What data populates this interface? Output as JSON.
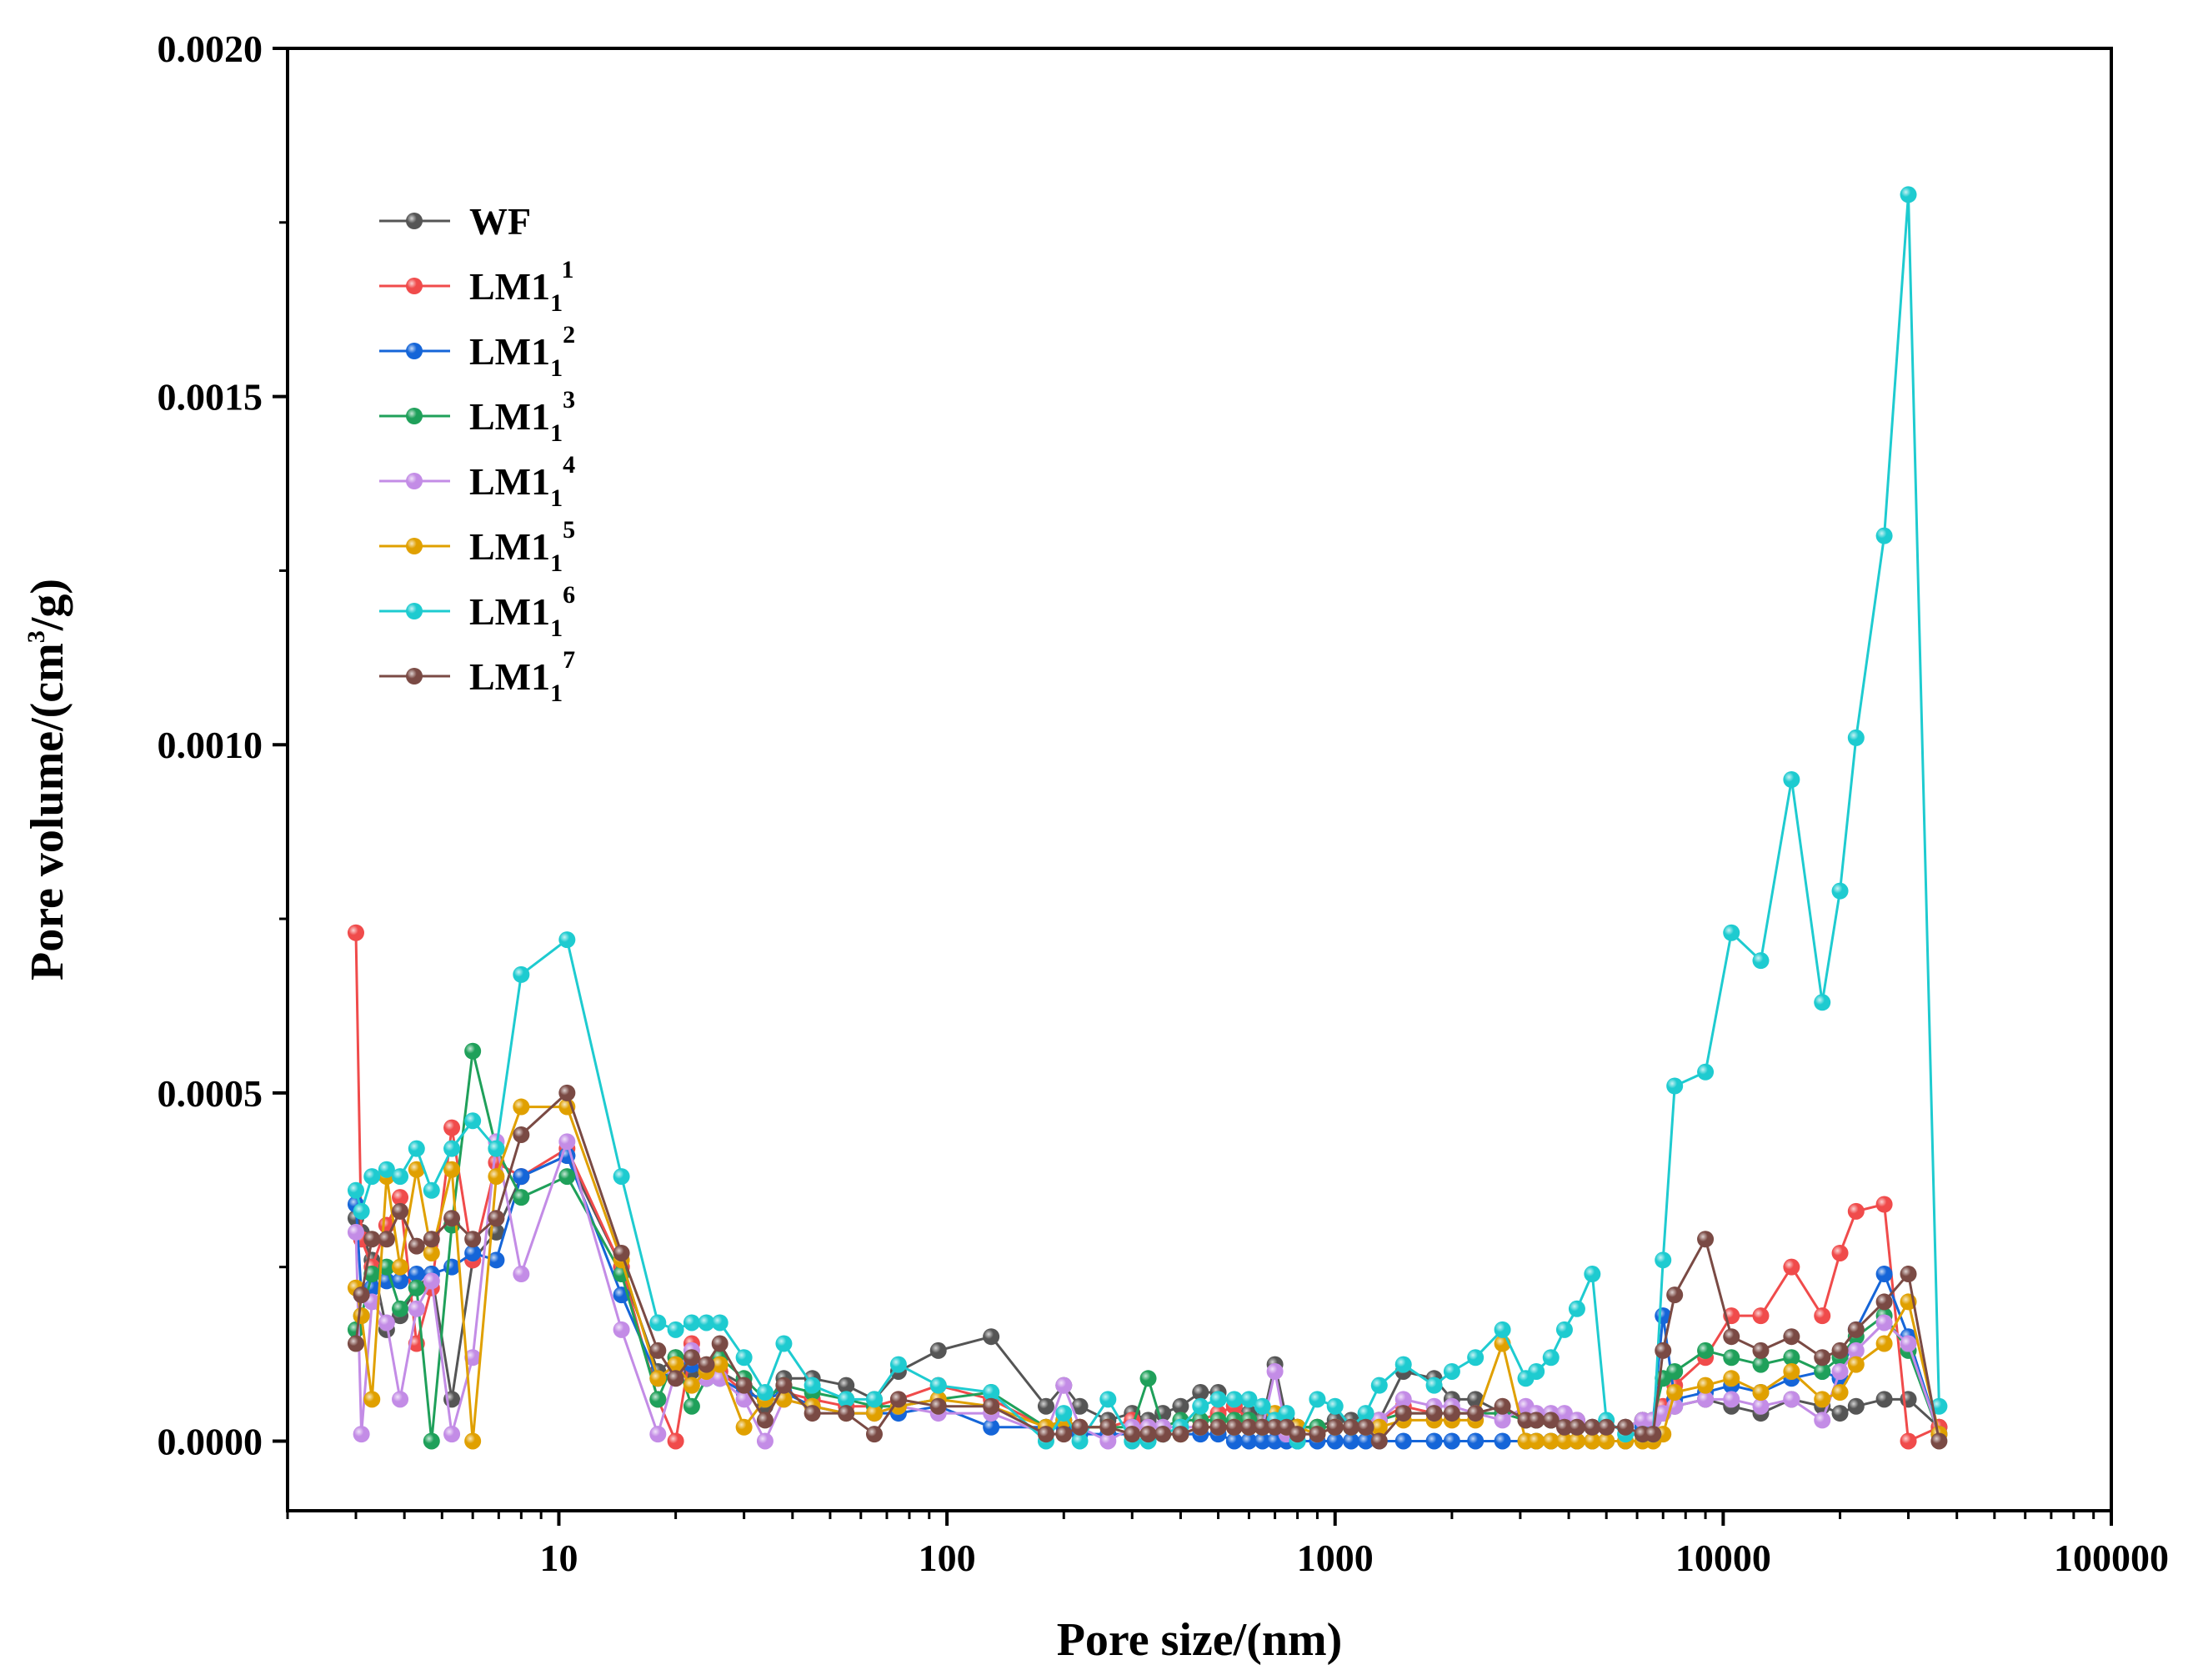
{
  "chart_data": {
    "type": "line",
    "title": "",
    "xlabel": "Pore size/(nm)",
    "ylabel_parts": [
      "Pore volume/(cm",
      "3",
      "/g)"
    ],
    "xscale": "log",
    "xlim": [
      2,
      100000
    ],
    "ylim": [
      -0.0001,
      0.002
    ],
    "xticks": [
      10,
      100,
      1000,
      10000,
      100000
    ],
    "xtick_labels": [
      "10",
      "100",
      "1000",
      "10000",
      "100000"
    ],
    "yticks": [
      0,
      0.0005,
      0.001,
      0.0015,
      0.002
    ],
    "ytick_labels": [
      "0.0000",
      "0.0005",
      "0.0010",
      "0.0015",
      "0.0020"
    ],
    "legend_position": "top-left",
    "x": [
      3.0,
      3.1,
      3.3,
      3.6,
      3.9,
      4.3,
      4.7,
      5.3,
      6.0,
      6.9,
      8.0,
      10.5,
      14.5,
      18,
      20,
      22,
      24,
      26,
      30,
      34,
      38,
      45,
      55,
      65,
      75,
      95,
      130,
      180,
      200,
      220,
      260,
      300,
      330,
      360,
      400,
      450,
      500,
      550,
      600,
      650,
      700,
      750,
      800,
      900,
      1000,
      1100,
      1200,
      1300,
      1500,
      1800,
      2000,
      2300,
      2700,
      3100,
      3300,
      3600,
      3900,
      4200,
      4600,
      5000,
      5600,
      6200,
      6600,
      7000,
      7500,
      9000,
      10500,
      12500,
      15000,
      18000,
      20000,
      22000,
      26000,
      30000,
      36000
    ],
    "series": [
      {
        "name": "WF",
        "label_base": "WF",
        "label_sup": "",
        "color": "#555555",
        "values": [
          0.00032,
          0.0003,
          0.00026,
          0.00016,
          0.00018,
          0.00022,
          0.00024,
          6e-05,
          0.00026,
          0.0003,
          0.00038,
          0.00041,
          0.00025,
          0.0001,
          0.00012,
          0.0001,
          9e-05,
          0.0001,
          8e-05,
          5e-05,
          9e-05,
          9e-05,
          8e-05,
          6e-05,
          0.0001,
          0.00013,
          0.00015,
          5e-05,
          8e-05,
          5e-05,
          3e-05,
          4e-05,
          3e-05,
          4e-05,
          5e-05,
          7e-05,
          7e-05,
          5e-05,
          4e-05,
          3e-05,
          0.00011,
          3e-05,
          2e-05,
          2e-05,
          3e-05,
          3e-05,
          3e-05,
          3e-05,
          0.0001,
          9e-05,
          6e-05,
          6e-05,
          4e-05,
          4e-05,
          3e-05,
          3e-05,
          3e-05,
          3e-05,
          2e-05,
          2e-05,
          2e-05,
          3e-05,
          3e-05,
          4e-05,
          5e-05,
          6e-05,
          5e-05,
          4e-05,
          6e-05,
          5e-05,
          4e-05,
          5e-05,
          6e-05,
          6e-05,
          2e-05
        ]
      },
      {
        "name": "LM1_1^1",
        "label_base": "LM1",
        "label_sub": "1",
        "label_sup": "1",
        "color": "#f04b4b",
        "values": [
          0.00073,
          0.00029,
          0.00025,
          0.00031,
          0.00035,
          0.00014,
          0.00022,
          0.00045,
          0.00026,
          0.0004,
          0.00038,
          0.00042,
          0.00025,
          6e-05,
          0.0,
          0.00014,
          0.0001,
          0.0001,
          7e-05,
          6e-05,
          7e-05,
          6e-05,
          5e-05,
          5e-05,
          6e-05,
          8e-05,
          6e-05,
          2e-05,
          3e-05,
          2e-05,
          2e-05,
          3e-05,
          2e-05,
          2e-05,
          3e-05,
          3e-05,
          4e-05,
          5e-05,
          3e-05,
          2e-05,
          3e-05,
          2e-05,
          2e-05,
          2e-05,
          2e-05,
          2e-05,
          2e-05,
          3e-05,
          5e-05,
          4e-05,
          4e-05,
          4e-05,
          4e-05,
          3e-05,
          3e-05,
          3e-05,
          3e-05,
          2e-05,
          2e-05,
          2e-05,
          2e-05,
          3e-05,
          3e-05,
          5e-05,
          8e-05,
          0.00012,
          0.00018,
          0.00018,
          0.00025,
          0.00018,
          0.00027,
          0.00033,
          0.00034,
          0.0,
          2e-05
        ]
      },
      {
        "name": "LM1_1^2",
        "label_base": "LM1",
        "label_sub": "1",
        "label_sup": "2",
        "color": "#1565d8",
        "values": [
          0.00034,
          0.00021,
          0.00022,
          0.00023,
          0.00023,
          0.00024,
          0.00024,
          0.00025,
          0.00027,
          0.00026,
          0.00038,
          0.00041,
          0.00021,
          9e-05,
          0.0001,
          0.00011,
          9e-05,
          9e-05,
          7e-05,
          6e-05,
          7e-05,
          5e-05,
          4e-05,
          4e-05,
          4e-05,
          5e-05,
          2e-05,
          2e-05,
          2e-05,
          1e-05,
          1e-05,
          1e-05,
          1e-05,
          1e-05,
          1e-05,
          1e-05,
          1e-05,
          0.0,
          0.0,
          0.0,
          0.0,
          0.0,
          0.0,
          0.0,
          0.0,
          0.0,
          0.0,
          0.0,
          0.0,
          0.0,
          0.0,
          0.0,
          0.0,
          0.0,
          0.0,
          0.0,
          0.0,
          0.0,
          0.0,
          0.0,
          0.0,
          2e-05,
          3e-05,
          0.00018,
          6e-05,
          7e-05,
          8e-05,
          7e-05,
          9e-05,
          0.0001,
          9e-05,
          0.00016,
          0.00024,
          0.00015,
          1e-05
        ]
      },
      {
        "name": "LM1_1^3",
        "label_base": "LM1",
        "label_sub": "1",
        "label_sup": "3",
        "color": "#1fa05a",
        "values": [
          0.00016,
          0.00018,
          0.00024,
          0.00025,
          0.00019,
          0.00022,
          0.0,
          0.00031,
          0.00056,
          0.00042,
          0.00035,
          0.00038,
          0.00024,
          6e-05,
          0.00012,
          5e-05,
          9e-05,
          0.00012,
          9e-05,
          6e-05,
          8e-05,
          7e-05,
          6e-05,
          5e-05,
          5e-05,
          6e-05,
          7e-05,
          2e-05,
          3e-05,
          2e-05,
          2e-05,
          2e-05,
          9e-05,
          2e-05,
          3e-05,
          3e-05,
          3e-05,
          3e-05,
          3e-05,
          2e-05,
          3e-05,
          2e-05,
          2e-05,
          2e-05,
          2e-05,
          2e-05,
          2e-05,
          3e-05,
          4e-05,
          4e-05,
          4e-05,
          4e-05,
          4e-05,
          3e-05,
          3e-05,
          3e-05,
          3e-05,
          2e-05,
          2e-05,
          2e-05,
          2e-05,
          3e-05,
          3e-05,
          9e-05,
          0.0001,
          0.00013,
          0.00012,
          0.00011,
          0.00012,
          0.0001,
          0.00012,
          0.00015,
          0.00018,
          0.00013,
          1e-05
        ]
      },
      {
        "name": "LM1_1^4",
        "label_base": "LM1",
        "label_sub": "1",
        "label_sup": "4",
        "color": "#c38ce6",
        "values": [
          0.0003,
          1e-05,
          0.0002,
          0.00017,
          6e-05,
          0.00019,
          0.00023,
          1e-05,
          0.00012,
          0.00043,
          0.00024,
          0.00043,
          0.00016,
          1e-05,
          0.0001,
          0.00013,
          9e-05,
          9e-05,
          6e-05,
          0.0,
          6e-05,
          5e-05,
          4e-05,
          4e-05,
          5e-05,
          4e-05,
          4e-05,
          1e-05,
          8e-05,
          2e-05,
          0.0,
          2e-05,
          2e-05,
          2e-05,
          2e-05,
          2e-05,
          2e-05,
          2e-05,
          2e-05,
          2e-05,
          0.0001,
          1e-05,
          1e-05,
          1e-05,
          2e-05,
          2e-05,
          2e-05,
          3e-05,
          6e-05,
          5e-05,
          5e-05,
          4e-05,
          3e-05,
          5e-05,
          4e-05,
          4e-05,
          4e-05,
          3e-05,
          2e-05,
          2e-05,
          2e-05,
          3e-05,
          3e-05,
          4e-05,
          5e-05,
          6e-05,
          6e-05,
          5e-05,
          6e-05,
          3e-05,
          0.0001,
          0.00013,
          0.00017,
          0.00014,
          1e-05
        ]
      },
      {
        "name": "LM1_1^5",
        "label_base": "LM1",
        "label_sub": "1",
        "label_sup": "5",
        "color": "#e0a000",
        "values": [
          0.00022,
          0.00018,
          6e-05,
          0.00038,
          0.00025,
          0.00039,
          0.00027,
          0.00039,
          0.0,
          0.00038,
          0.00048,
          0.00048,
          0.00026,
          9e-05,
          0.00011,
          8e-05,
          0.0001,
          0.00011,
          2e-05,
          6e-05,
          6e-05,
          5e-05,
          4e-05,
          4e-05,
          5e-05,
          6e-05,
          5e-05,
          2e-05,
          3e-05,
          2e-05,
          2e-05,
          1e-05,
          1e-05,
          1e-05,
          1e-05,
          2e-05,
          2e-05,
          2e-05,
          2e-05,
          2e-05,
          4e-05,
          2e-05,
          2e-05,
          1e-05,
          2e-05,
          2e-05,
          2e-05,
          2e-05,
          3e-05,
          3e-05,
          3e-05,
          3e-05,
          0.00014,
          0.0,
          0.0,
          0.0,
          0.0,
          0.0,
          0.0,
          0.0,
          0.0,
          0.0,
          0.0,
          1e-05,
          7e-05,
          8e-05,
          9e-05,
          7e-05,
          0.0001,
          6e-05,
          7e-05,
          0.00011,
          0.00014,
          0.0002,
          1e-05
        ]
      },
      {
        "name": "LM1_1^6",
        "label_base": "LM1",
        "label_sub": "1",
        "label_sup": "6",
        "color": "#1ecbd0",
        "values": [
          0.00036,
          0.00033,
          0.00038,
          0.00039,
          0.00038,
          0.00042,
          0.00036,
          0.00042,
          0.00046,
          0.00042,
          0.00067,
          0.00072,
          0.00038,
          0.00017,
          0.00016,
          0.00017,
          0.00017,
          0.00017,
          0.00012,
          7e-05,
          0.00014,
          8e-05,
          6e-05,
          6e-05,
          0.00011,
          8e-05,
          7e-05,
          0.0,
          4e-05,
          0.0,
          6e-05,
          0.0,
          0.0,
          1e-05,
          2e-05,
          5e-05,
          6e-05,
          6e-05,
          6e-05,
          5e-05,
          3e-05,
          4e-05,
          0.0,
          6e-05,
          5e-05,
          2e-05,
          4e-05,
          8e-05,
          0.00011,
          8e-05,
          0.0001,
          0.00012,
          0.00016,
          9e-05,
          0.0001,
          0.00012,
          0.00016,
          0.00019,
          0.00024,
          3e-05,
          1e-05,
          1e-05,
          1e-05,
          0.00026,
          0.00051,
          0.00053,
          0.00073,
          0.00069,
          0.00095,
          0.00063,
          0.00079,
          0.00101,
          0.0013,
          0.00179,
          5e-05
        ]
      },
      {
        "name": "LM1_1^7",
        "label_base": "LM1",
        "label_sub": "1",
        "label_sup": "7",
        "color": "#7a4a44",
        "values": [
          0.00014,
          0.00021,
          0.00029,
          0.00029,
          0.00033,
          0.00028,
          0.00029,
          0.00032,
          0.00029,
          0.00032,
          0.00044,
          0.0005,
          0.00027,
          0.00013,
          9e-05,
          0.00012,
          0.00011,
          0.00014,
          8e-05,
          3e-05,
          8e-05,
          4e-05,
          4e-05,
          1e-05,
          6e-05,
          5e-05,
          5e-05,
          1e-05,
          1e-05,
          2e-05,
          2e-05,
          1e-05,
          1e-05,
          1e-05,
          1e-05,
          2e-05,
          2e-05,
          2e-05,
          2e-05,
          2e-05,
          2e-05,
          2e-05,
          1e-05,
          1e-05,
          2e-05,
          2e-05,
          2e-05,
          0.0,
          4e-05,
          4e-05,
          4e-05,
          4e-05,
          5e-05,
          3e-05,
          3e-05,
          3e-05,
          2e-05,
          2e-05,
          2e-05,
          2e-05,
          2e-05,
          1e-05,
          1e-05,
          0.00013,
          0.00021,
          0.00029,
          0.00015,
          0.00013,
          0.00015,
          0.00012,
          0.00013,
          0.00016,
          0.0002,
          0.00024,
          0.0
        ]
      }
    ]
  }
}
